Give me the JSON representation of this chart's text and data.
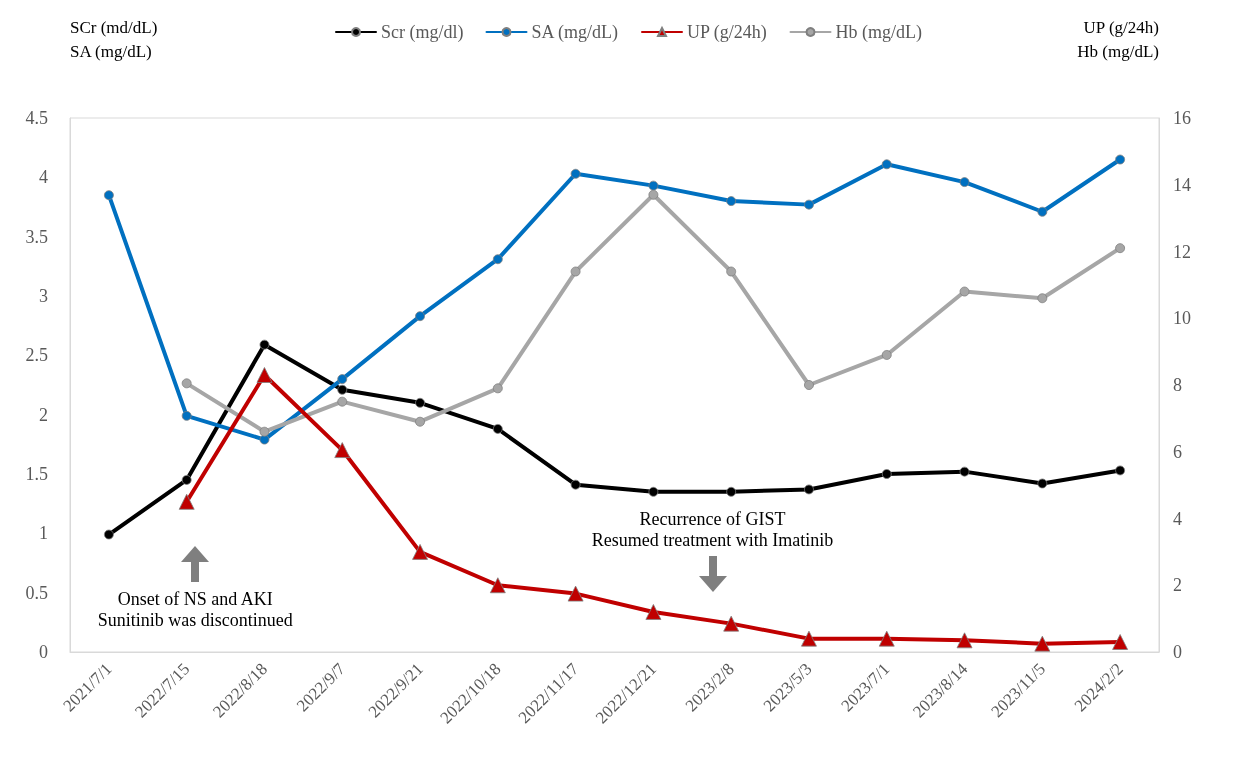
{
  "chart_data": {
    "type": "line",
    "ylabel": "SCr (md/dL)\nSA (mg/dL)",
    "y2label": "UP (g/24h)\nHb (mg/dL)",
    "categories": [
      "2021/7/1",
      "2022/7/15",
      "2022/8/18",
      "2022/9/7",
      "2022/9/21",
      "2022/10/18",
      "2022/11/17",
      "2022/12/21",
      "2023/2/8",
      "2023/5/3",
      "2023/7/1",
      "2023/8/14",
      "2023/11/5",
      "2024/2/2"
    ],
    "series": [
      {
        "name": "Scr (mg/dl)",
        "color": "#000000",
        "marker": "circle",
        "values": [
          0.99,
          1.45,
          2.59,
          2.21,
          2.1,
          1.88,
          1.41,
          1.35,
          1.35,
          1.37,
          1.5,
          1.52,
          1.42,
          1.53
        ]
      },
      {
        "name": "SA (mg/dL)",
        "color": "#0070c0",
        "marker": "circle",
        "values": [
          3.85,
          1.99,
          1.79,
          2.3,
          2.83,
          3.31,
          4.03,
          3.93,
          3.8,
          3.77,
          4.11,
          3.96,
          3.71,
          4.15
        ]
      },
      {
        "name": "UP (g/24h)",
        "color": "#c00000",
        "marker": "triangle",
        "axis": "y2",
        "values": [
          null,
          4.5,
          8.3,
          6.05,
          3.0,
          2.0,
          1.75,
          1.2,
          0.85,
          0.4,
          0.4,
          0.35,
          0.25,
          0.3
        ]
      },
      {
        "name": "Hb (mg/dL)",
        "color": "#a6a6a6",
        "marker": "circle",
        "axis": "y2",
        "values": [
          null,
          8.05,
          6.6,
          7.5,
          6.9,
          7.9,
          11.4,
          13.7,
          11.4,
          8.0,
          8.9,
          10.8,
          10.6,
          12.1
        ]
      }
    ],
    "ylim": [
      0,
      4.5
    ],
    "yticks": [
      0,
      0.5,
      1,
      1.5,
      2,
      2.5,
      3,
      3.5,
      4,
      4.5
    ],
    "y2lim": [
      0,
      16
    ],
    "y2ticks": [
      0,
      2,
      4,
      6,
      8,
      10,
      12,
      14,
      16
    ],
    "annotations": [
      "Onset of NS and AKI\nSunitinib was discontinued",
      "Recurrence of GIST\nResumed treatment with Imatinib"
    ],
    "legend": "top",
    "grid": false,
    "line_style": "solid"
  }
}
